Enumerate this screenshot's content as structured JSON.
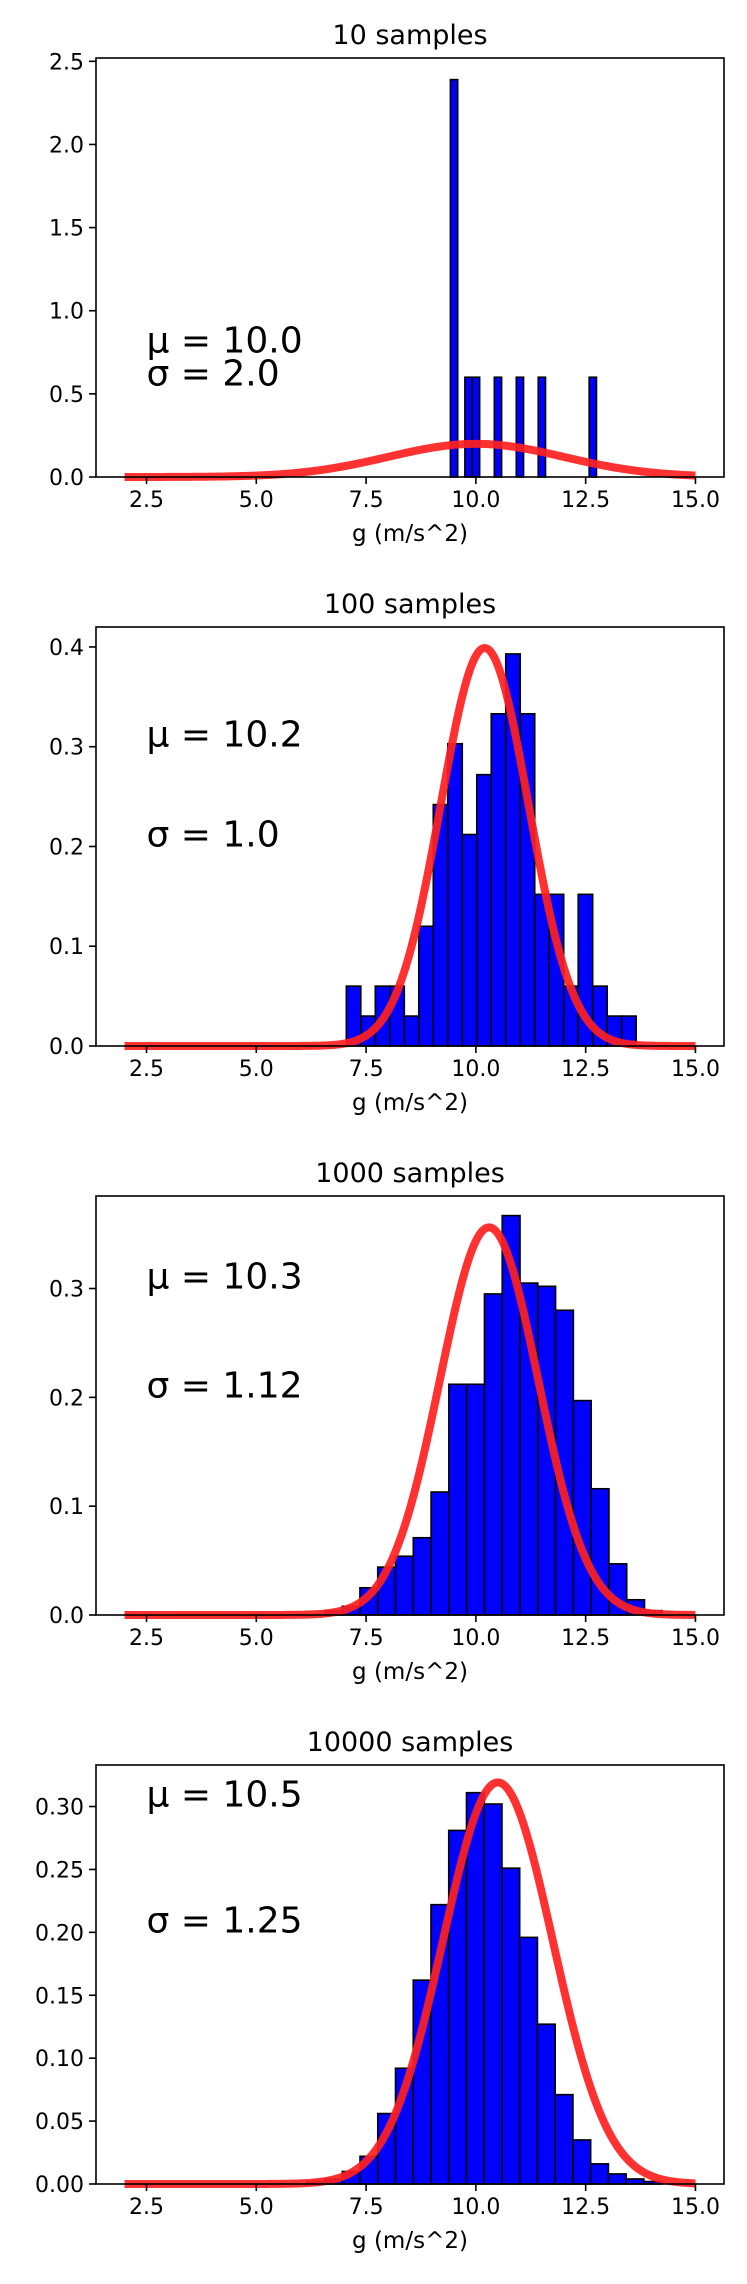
{
  "chart_data": [
    {
      "type": "bar",
      "title": "10 samples",
      "xlabel": "g (m/s^2)",
      "ylabel": "",
      "xlim": [
        1.35,
        15.65
      ],
      "ylim": [
        0,
        2.52
      ],
      "xticks": [
        2.5,
        5.0,
        7.5,
        10.0,
        12.5,
        15.0
      ],
      "xtick_labels": [
        "2.5",
        "5.0",
        "7.5",
        "10.0",
        "12.5",
        "15.0"
      ],
      "yticks": [
        0,
        0.5,
        1.0,
        1.5,
        2.0,
        2.5
      ],
      "ytick_labels": [
        "0.0",
        "0.5",
        "1.0",
        "1.5",
        "2.0",
        "2.5"
      ],
      "bin_width": 0.166,
      "bins": [
        {
          "left": 9.42,
          "value": 2.39
        },
        {
          "left": 9.75,
          "value": 0.6
        },
        {
          "left": 9.92,
          "value": 0.6
        },
        {
          "left": 10.42,
          "value": 0.6
        },
        {
          "left": 10.92,
          "value": 0.6
        },
        {
          "left": 11.42,
          "value": 0.6
        },
        {
          "left": 12.58,
          "value": 0.6
        }
      ],
      "fit": {
        "mu": 10.0,
        "sigma": 2.0,
        "x_range": [
          2,
          15
        ]
      },
      "annotations": {
        "mu_text": "μ = 10.0",
        "sigma_text": "σ = 2.0"
      },
      "annotation_pos": {
        "mu_y": 0.75,
        "sigma_y": 0.55
      }
    },
    {
      "type": "bar",
      "title": "100 samples",
      "xlabel": "g (m/s^2)",
      "ylabel": "",
      "xlim": [
        1.35,
        15.65
      ],
      "ylim": [
        0,
        0.42
      ],
      "xticks": [
        2.5,
        5.0,
        7.5,
        10.0,
        12.5,
        15.0
      ],
      "xtick_labels": [
        "2.5",
        "5.0",
        "7.5",
        "10.0",
        "12.5",
        "15.0"
      ],
      "yticks": [
        0,
        0.1,
        0.2,
        0.3,
        0.4
      ],
      "ytick_labels": [
        "0.0",
        "0.1",
        "0.2",
        "0.3",
        "0.4"
      ],
      "bin_width": 0.33,
      "bins": [
        {
          "left": 7.05,
          "value": 0.06
        },
        {
          "left": 7.38,
          "value": 0.03
        },
        {
          "left": 7.71,
          "value": 0.06
        },
        {
          "left": 8.04,
          "value": 0.06
        },
        {
          "left": 8.37,
          "value": 0.03
        },
        {
          "left": 8.7,
          "value": 0.12
        },
        {
          "left": 9.03,
          "value": 0.242
        },
        {
          "left": 9.36,
          "value": 0.303
        },
        {
          "left": 9.69,
          "value": 0.212
        },
        {
          "left": 10.02,
          "value": 0.272
        },
        {
          "left": 10.35,
          "value": 0.333
        },
        {
          "left": 10.68,
          "value": 0.393
        },
        {
          "left": 11.01,
          "value": 0.333
        },
        {
          "left": 11.34,
          "value": 0.152
        },
        {
          "left": 11.67,
          "value": 0.152
        },
        {
          "left": 12.0,
          "value": 0.06
        },
        {
          "left": 12.33,
          "value": 0.152
        },
        {
          "left": 12.66,
          "value": 0.06
        },
        {
          "left": 12.99,
          "value": 0.03
        },
        {
          "left": 13.32,
          "value": 0.03
        }
      ],
      "fit": {
        "mu": 10.2,
        "sigma": 1.0,
        "x_range": [
          2,
          15
        ]
      },
      "annotations": {
        "mu_text": "μ = 10.2",
        "sigma_text": "σ = 1.0"
      },
      "annotation_pos": {
        "mu_y": 0.3,
        "sigma_y": 0.2
      }
    },
    {
      "type": "bar",
      "title": "1000 samples",
      "xlabel": "g (m/s^2)",
      "ylabel": "",
      "xlim": [
        1.35,
        15.65
      ],
      "ylim": [
        0,
        0.385
      ],
      "xticks": [
        2.5,
        5.0,
        7.5,
        10.0,
        12.5,
        15.0
      ],
      "xtick_labels": [
        "2.5",
        "5.0",
        "7.5",
        "10.0",
        "12.5",
        "15.0"
      ],
      "yticks": [
        0,
        0.1,
        0.2,
        0.3
      ],
      "ytick_labels": [
        "0.0",
        "0.1",
        "0.2",
        "0.3"
      ],
      "bin_width": 0.405,
      "bins": [
        {
          "left": 6.55,
          "value": 0.004
        },
        {
          "left": 6.955,
          "value": 0.008
        },
        {
          "left": 7.36,
          "value": 0.025
        },
        {
          "left": 7.765,
          "value": 0.044
        },
        {
          "left": 8.17,
          "value": 0.054
        },
        {
          "left": 8.575,
          "value": 0.071
        },
        {
          "left": 8.98,
          "value": 0.113
        },
        {
          "left": 9.385,
          "value": 0.212
        },
        {
          "left": 9.79,
          "value": 0.212
        },
        {
          "left": 10.195,
          "value": 0.295
        },
        {
          "left": 10.6,
          "value": 0.367
        },
        {
          "left": 11.005,
          "value": 0.305
        },
        {
          "left": 11.41,
          "value": 0.302
        },
        {
          "left": 11.815,
          "value": 0.28
        },
        {
          "left": 12.22,
          "value": 0.197
        },
        {
          "left": 12.625,
          "value": 0.116
        },
        {
          "left": 13.03,
          "value": 0.047
        },
        {
          "left": 13.435,
          "value": 0.014
        },
        {
          "left": 13.84,
          "value": 0.004
        }
      ],
      "fit": {
        "mu": 10.3,
        "sigma": 1.12,
        "x_range": [
          2,
          15
        ]
      },
      "annotations": {
        "mu_text": "μ = 10.3",
        "sigma_text": "σ = 1.12"
      },
      "annotation_pos": {
        "mu_y": 0.3,
        "sigma_y": 0.2
      }
    },
    {
      "type": "bar",
      "title": "10000 samples",
      "xlabel": "g (m/s^2)",
      "ylabel": "",
      "xlim": [
        1.35,
        15.65
      ],
      "ylim": [
        0,
        0.333
      ],
      "xticks": [
        2.5,
        5.0,
        7.5,
        10.0,
        12.5,
        15.0
      ],
      "xtick_labels": [
        "2.5",
        "5.0",
        "7.5",
        "10.0",
        "12.5",
        "15.0"
      ],
      "yticks": [
        0,
        0.05,
        0.1,
        0.15,
        0.2,
        0.25,
        0.3
      ],
      "ytick_labels": [
        "0.00",
        "0.05",
        "0.10",
        "0.15",
        "0.20",
        "0.25",
        "0.30"
      ],
      "bin_width": 0.404,
      "bins": [
        {
          "left": 6.15,
          "value": 0.002
        },
        {
          "left": 6.554,
          "value": 0.004
        },
        {
          "left": 6.958,
          "value": 0.01
        },
        {
          "left": 7.362,
          "value": 0.022
        },
        {
          "left": 7.766,
          "value": 0.056
        },
        {
          "left": 8.17,
          "value": 0.092
        },
        {
          "left": 8.574,
          "value": 0.162
        },
        {
          "left": 8.978,
          "value": 0.222
        },
        {
          "left": 9.382,
          "value": 0.281
        },
        {
          "left": 9.786,
          "value": 0.311
        },
        {
          "left": 10.19,
          "value": 0.302
        },
        {
          "left": 10.594,
          "value": 0.251
        },
        {
          "left": 10.998,
          "value": 0.196
        },
        {
          "left": 11.402,
          "value": 0.127
        },
        {
          "left": 11.806,
          "value": 0.071
        },
        {
          "left": 12.21,
          "value": 0.035
        },
        {
          "left": 12.614,
          "value": 0.016
        },
        {
          "left": 13.018,
          "value": 0.008
        },
        {
          "left": 13.422,
          "value": 0.004
        },
        {
          "left": 13.826,
          "value": 0.002
        }
      ],
      "fit": {
        "mu": 10.5,
        "sigma": 1.25,
        "x_range": [
          2,
          15
        ]
      },
      "annotations": {
        "mu_text": "μ = 10.5",
        "sigma_text": "σ = 1.25"
      },
      "annotation_pos": {
        "mu_y": 0.3,
        "sigma_y": 0.2
      }
    }
  ],
  "colors": {
    "bar_fill": "#0000ff",
    "bar_edge": "#000000",
    "fit_line": "#ff2020"
  }
}
